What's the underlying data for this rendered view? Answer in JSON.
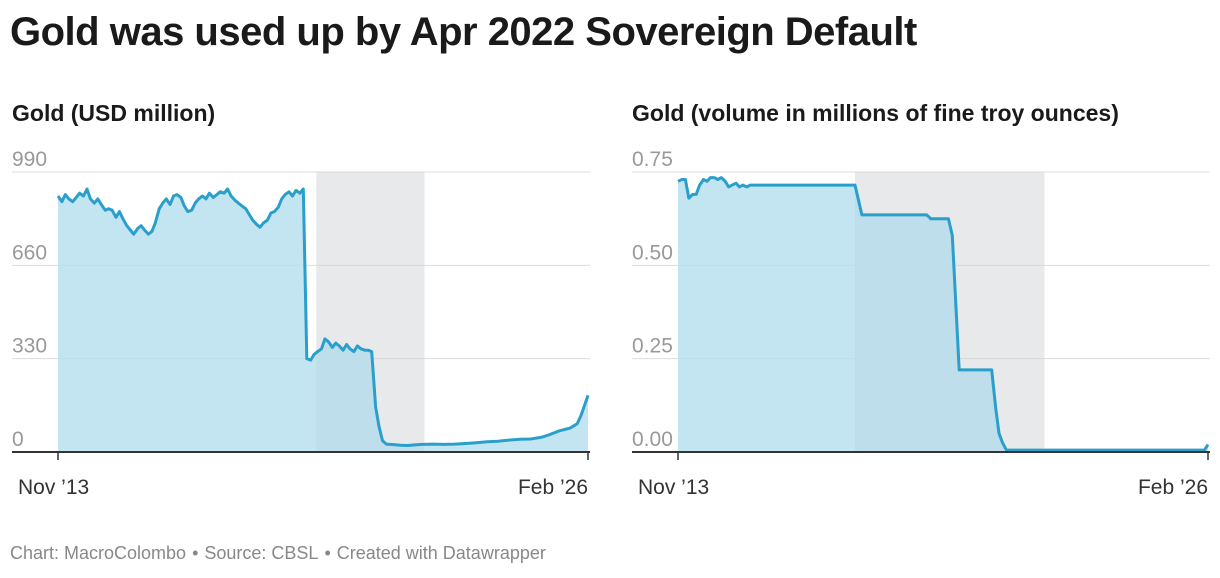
{
  "title": "Gold was used up by Apr 2022 Sovereign Default",
  "footer": {
    "chart_credit": "Chart: MacroColombo",
    "source": "Source: CBSL",
    "created": "Created with Datawrapper",
    "separator": "•"
  },
  "colors": {
    "line": "#2a9fcb",
    "area": "#b9e1ef",
    "highlight": "#efefef",
    "grid": "#dddddd",
    "tick_text": "#999999",
    "axis": "#333333"
  },
  "chart_data": [
    {
      "type": "area",
      "title": "Gold (USD million)",
      "x_start": "Nov ’13",
      "x_end": "Feb ’26",
      "xlabels": [
        "Nov ’13",
        "Feb ’26"
      ],
      "yticks": [
        0,
        330,
        660,
        990
      ],
      "ytick_labels": [
        "0",
        "330",
        "660",
        "990"
      ],
      "ylim": [
        0,
        990
      ],
      "x_range": [
        2013.83,
        2026.08
      ],
      "shaded_period": [
        2019.8,
        2022.3
      ],
      "series": [
        {
          "name": "Gold (USD million)",
          "points": [
            [
              2013.83,
              905
            ],
            [
              2013.92,
              885
            ],
            [
              2014.0,
              910
            ],
            [
              2014.08,
              895
            ],
            [
              2014.17,
              885
            ],
            [
              2014.25,
              900
            ],
            [
              2014.33,
              915
            ],
            [
              2014.42,
              905
            ],
            [
              2014.5,
              930
            ],
            [
              2014.58,
              895
            ],
            [
              2014.67,
              880
            ],
            [
              2014.75,
              895
            ],
            [
              2014.83,
              875
            ],
            [
              2014.92,
              855
            ],
            [
              2015.0,
              860
            ],
            [
              2015.08,
              855
            ],
            [
              2015.17,
              830
            ],
            [
              2015.25,
              850
            ],
            [
              2015.33,
              825
            ],
            [
              2015.42,
              800
            ],
            [
              2015.5,
              785
            ],
            [
              2015.58,
              770
            ],
            [
              2015.67,
              790
            ],
            [
              2015.75,
              800
            ],
            [
              2015.83,
              785
            ],
            [
              2015.92,
              770
            ],
            [
              2016.0,
              780
            ],
            [
              2016.08,
              810
            ],
            [
              2016.17,
              860
            ],
            [
              2016.25,
              880
            ],
            [
              2016.33,
              895
            ],
            [
              2016.42,
              875
            ],
            [
              2016.5,
              905
            ],
            [
              2016.58,
              910
            ],
            [
              2016.67,
              900
            ],
            [
              2016.75,
              870
            ],
            [
              2016.83,
              850
            ],
            [
              2016.92,
              855
            ],
            [
              2017.0,
              880
            ],
            [
              2017.08,
              895
            ],
            [
              2017.17,
              905
            ],
            [
              2017.25,
              895
            ],
            [
              2017.33,
              915
            ],
            [
              2017.42,
              900
            ],
            [
              2017.5,
              910
            ],
            [
              2017.58,
              920
            ],
            [
              2017.67,
              915
            ],
            [
              2017.75,
              930
            ],
            [
              2017.83,
              905
            ],
            [
              2017.92,
              890
            ],
            [
              2018.0,
              880
            ],
            [
              2018.08,
              870
            ],
            [
              2018.17,
              860
            ],
            [
              2018.25,
              840
            ],
            [
              2018.33,
              820
            ],
            [
              2018.42,
              805
            ],
            [
              2018.5,
              795
            ],
            [
              2018.58,
              810
            ],
            [
              2018.67,
              820
            ],
            [
              2018.75,
              845
            ],
            [
              2018.83,
              850
            ],
            [
              2018.92,
              865
            ],
            [
              2019.0,
              895
            ],
            [
              2019.08,
              910
            ],
            [
              2019.17,
              920
            ],
            [
              2019.25,
              905
            ],
            [
              2019.33,
              925
            ],
            [
              2019.42,
              915
            ],
            [
              2019.5,
              930
            ],
            [
              2019.58,
              330
            ],
            [
              2019.67,
              325
            ],
            [
              2019.75,
              345
            ],
            [
              2019.83,
              355
            ],
            [
              2019.92,
              365
            ],
            [
              2020.0,
              400
            ],
            [
              2020.08,
              390
            ],
            [
              2020.17,
              370
            ],
            [
              2020.25,
              385
            ],
            [
              2020.33,
              375
            ],
            [
              2020.42,
              360
            ],
            [
              2020.5,
              380
            ],
            [
              2020.58,
              365
            ],
            [
              2020.67,
              355
            ],
            [
              2020.75,
              375
            ],
            [
              2020.83,
              365
            ],
            [
              2020.92,
              360
            ],
            [
              2021.0,
              360
            ],
            [
              2021.08,
              355
            ],
            [
              2021.17,
              160
            ],
            [
              2021.25,
              90
            ],
            [
              2021.33,
              40
            ],
            [
              2021.42,
              28
            ],
            [
              2021.58,
              26
            ],
            [
              2021.75,
              24
            ],
            [
              2021.92,
              23
            ],
            [
              2022.08,
              25
            ],
            [
              2022.25,
              27
            ],
            [
              2022.5,
              28
            ],
            [
              2022.75,
              27
            ],
            [
              2023.0,
              28
            ],
            [
              2023.25,
              30
            ],
            [
              2023.5,
              33
            ],
            [
              2023.75,
              36
            ],
            [
              2024.0,
              38
            ],
            [
              2024.25,
              42
            ],
            [
              2024.5,
              45
            ],
            [
              2024.75,
              46
            ],
            [
              2025.0,
              52
            ],
            [
              2025.17,
              60
            ],
            [
              2025.42,
              75
            ],
            [
              2025.67,
              85
            ],
            [
              2025.83,
              100
            ],
            [
              2025.92,
              130
            ],
            [
              2026.08,
              200
            ]
          ]
        }
      ]
    },
    {
      "type": "area",
      "title": "Gold (volume in millions of fine troy ounces)",
      "x_start": "Nov ’13",
      "x_end": "Feb ’26",
      "xlabels": [
        "Nov ’13",
        "Feb ’26"
      ],
      "yticks": [
        0,
        0.25,
        0.5,
        0.75
      ],
      "ytick_labels": [
        "0.00",
        "0.25",
        "0.50",
        "0.75"
      ],
      "ylim": [
        0,
        0.75
      ],
      "x_range": [
        2013.83,
        2026.08
      ],
      "shaded_period": [
        2017.92,
        2022.3
      ],
      "series": [
        {
          "name": "Gold volume (million fine troy oz)",
          "points": [
            [
              2013.83,
              0.725
            ],
            [
              2013.92,
              0.73
            ],
            [
              2014.0,
              0.73
            ],
            [
              2014.08,
              0.68
            ],
            [
              2014.17,
              0.69
            ],
            [
              2014.25,
              0.69
            ],
            [
              2014.33,
              0.715
            ],
            [
              2014.42,
              0.73
            ],
            [
              2014.5,
              0.725
            ],
            [
              2014.58,
              0.735
            ],
            [
              2014.67,
              0.735
            ],
            [
              2014.75,
              0.73
            ],
            [
              2014.83,
              0.735
            ],
            [
              2014.92,
              0.725
            ],
            [
              2015.0,
              0.71
            ],
            [
              2015.08,
              0.715
            ],
            [
              2015.17,
              0.72
            ],
            [
              2015.25,
              0.71
            ],
            [
              2015.33,
              0.715
            ],
            [
              2015.42,
              0.71
            ],
            [
              2015.5,
              0.715
            ],
            [
              2015.58,
              0.715
            ],
            [
              2017.0,
              0.715
            ],
            [
              2017.92,
              0.715
            ],
            [
              2018.08,
              0.635
            ],
            [
              2019.58,
              0.635
            ],
            [
              2019.67,
              0.625
            ],
            [
              2020.08,
              0.625
            ],
            [
              2020.17,
              0.58
            ],
            [
              2020.33,
              0.22
            ],
            [
              2021.0,
              0.22
            ],
            [
              2021.08,
              0.22
            ],
            [
              2021.17,
              0.12
            ],
            [
              2021.25,
              0.05
            ],
            [
              2021.33,
              0.025
            ],
            [
              2021.42,
              0.005
            ],
            [
              2022.0,
              0.005
            ],
            [
              2024.0,
              0.005
            ],
            [
              2025.92,
              0.005
            ],
            [
              2026.0,
              0.005
            ],
            [
              2026.08,
              0.02
            ]
          ]
        }
      ]
    }
  ]
}
